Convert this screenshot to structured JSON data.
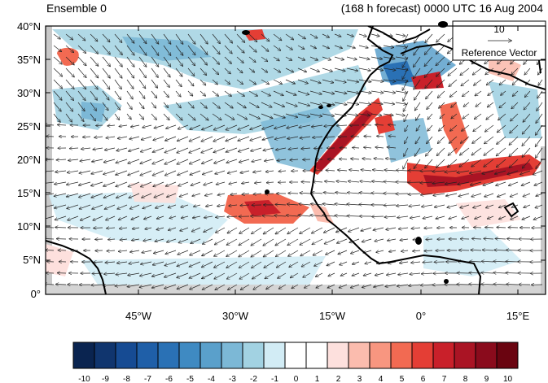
{
  "header": {
    "left_title": "Ensemble 0",
    "right_title": "(168 h forecast) 0000 UTC 16 Aug 2004"
  },
  "map": {
    "lat_labels": [
      "40°N",
      "35°N",
      "30°N",
      "25°N",
      "20°N",
      "15°N",
      "10°N",
      "5°N",
      "0°"
    ],
    "lon_labels": [
      "45°W",
      "30°W",
      "15°W",
      "0°",
      "15°E"
    ],
    "extent": {
      "lon_min": -58,
      "lon_max": 19,
      "lat_min": 0,
      "lat_max": 40
    }
  },
  "reference_vector": {
    "value": "10",
    "label": "Reference Vector"
  },
  "colorbar": {
    "labels": [
      "-10",
      "-9",
      "-8",
      "-7",
      "-6",
      "-5",
      "-4",
      "-3",
      "-2",
      "-1",
      "0",
      "1",
      "2",
      "3",
      "4",
      "5",
      "6",
      "7",
      "8",
      "9",
      "10"
    ],
    "colors": [
      "#0a2450",
      "#10356e",
      "#164b93",
      "#1f5fa8",
      "#2a71b5",
      "#3f8ac2",
      "#5aa0cb",
      "#7cb8d6",
      "#a2d2e2",
      "#d2ecf5",
      "#ffffff",
      "#ffffff",
      "#fde0dd",
      "#fbbcae",
      "#f89680",
      "#f26a52",
      "#e43e35",
      "#c9202a",
      "#aa1424",
      "#8a0b1c",
      "#6a0410"
    ]
  }
}
